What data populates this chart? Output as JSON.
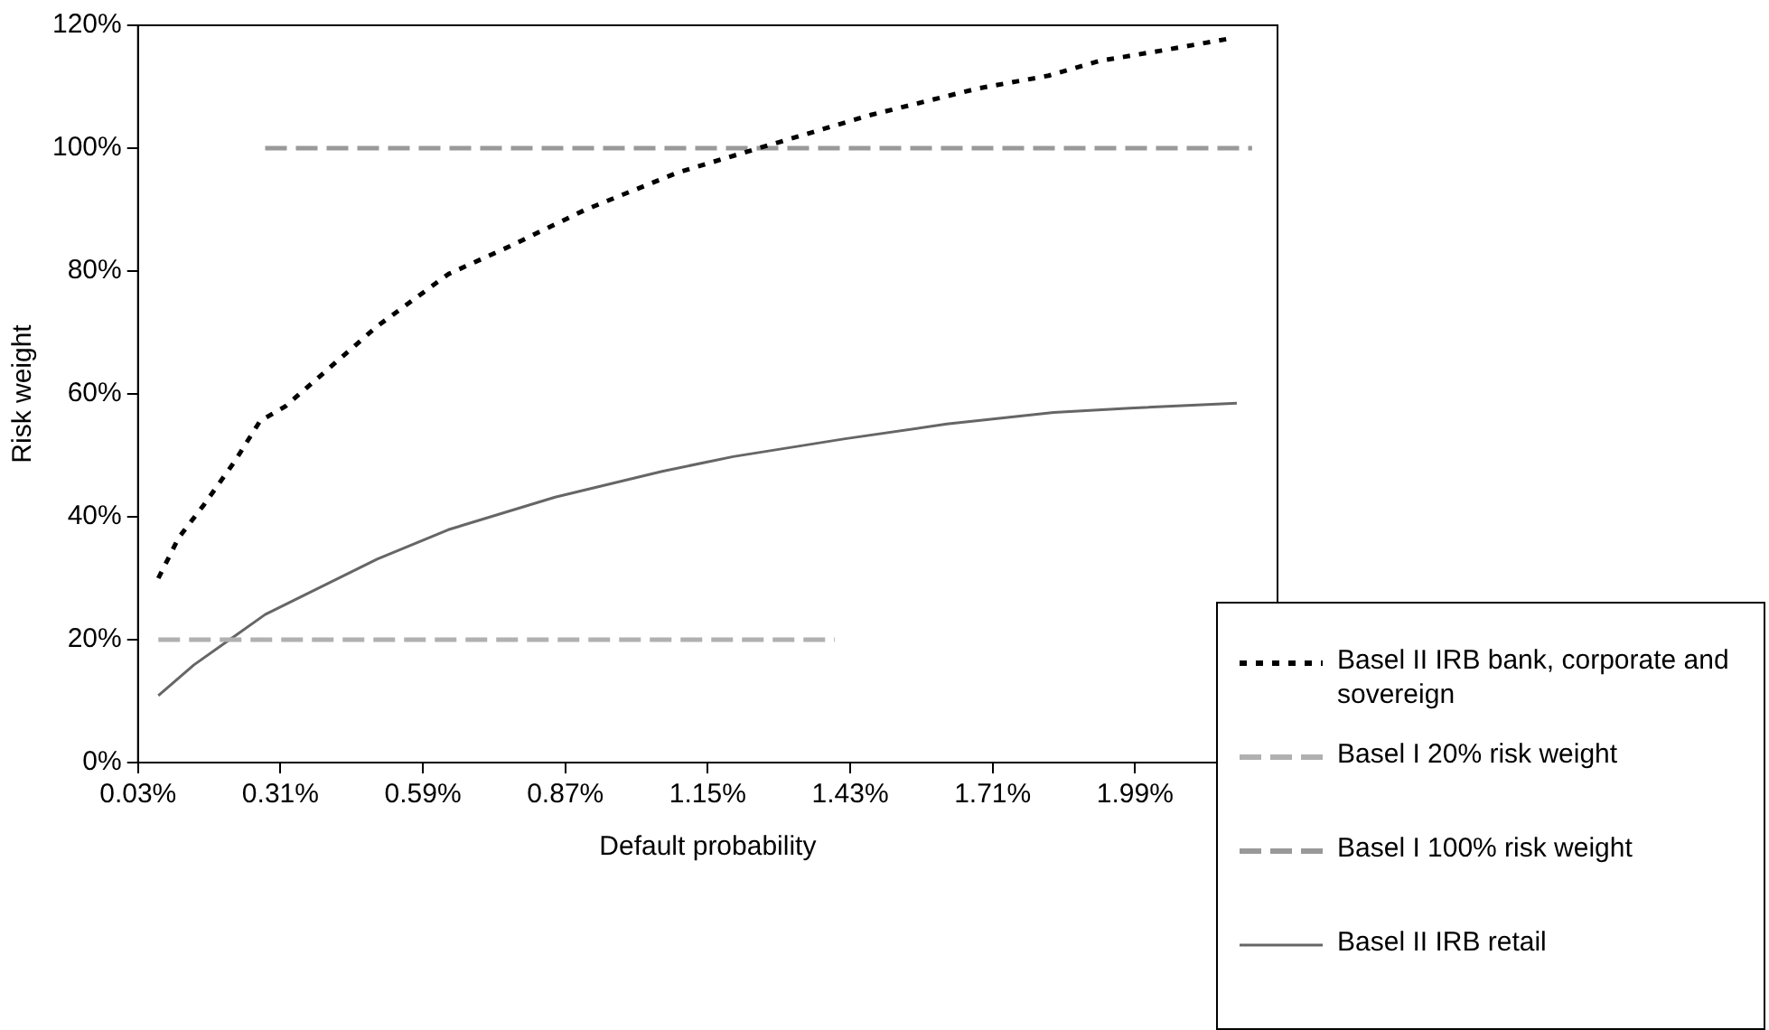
{
  "chart_data": {
    "type": "line",
    "xlabel": "Default probability",
    "ylabel": "Risk weight",
    "xlim": [
      0.03,
      2.27
    ],
    "xticks": [
      {
        "value": 0.03,
        "label": "0.03%"
      },
      {
        "value": 0.31,
        "label": "0.31%"
      },
      {
        "value": 0.59,
        "label": "0.59%"
      },
      {
        "value": 0.87,
        "label": "0.87%"
      },
      {
        "value": 1.15,
        "label": "1.15%"
      },
      {
        "value": 1.43,
        "label": "1.43%"
      },
      {
        "value": 1.71,
        "label": "1.71%"
      },
      {
        "value": 1.99,
        "label": "1.99%"
      },
      {
        "value": 2.27,
        "label": null
      }
    ],
    "ylim": [
      0,
      120
    ],
    "yticks": [
      {
        "value": 0,
        "label": "0%"
      },
      {
        "value": 20,
        "label": "20%"
      },
      {
        "value": 40,
        "label": "40%"
      },
      {
        "value": 60,
        "label": "60%"
      },
      {
        "value": 80,
        "label": "80%"
      },
      {
        "value": 100,
        "label": "100%"
      },
      {
        "value": 120,
        "label": "120%"
      }
    ],
    "grid": false,
    "legend": "bottom right",
    "marker": "none",
    "series": [
      {
        "name": "Basel II IRB bank, corporate and sovereign",
        "color": "#000000",
        "line_style": "dotted",
        "x": [
          0.07,
          0.11,
          0.16,
          0.22,
          0.27,
          0.32,
          0.5,
          0.64,
          0.76,
          0.91,
          1.09,
          1.25,
          1.47,
          1.68,
          1.82,
          1.92,
          2.05,
          2.18
        ],
        "values": [
          30,
          36.6,
          42,
          49,
          55.6,
          58,
          71,
          79.5,
          84,
          90,
          96,
          100,
          105.4,
          109.7,
          111.8,
          114.2,
          116,
          117.9
        ]
      },
      {
        "name": "Basel I 20% risk weight",
        "color": "#b0b0b0",
        "line_style": "dashed",
        "x": [
          0.07,
          1.4
        ],
        "values": [
          20,
          20
        ]
      },
      {
        "name": "Basel I 100% risk weight",
        "color": "#999999",
        "line_style": "dashed",
        "x": [
          0.28,
          2.22
        ],
        "values": [
          100,
          100
        ]
      },
      {
        "name": "Basel II IRB retail",
        "color": "#666666",
        "line_style": "solid",
        "x": [
          0.07,
          0.14,
          0.28,
          0.5,
          0.64,
          0.85,
          1.06,
          1.2,
          1.42,
          1.62,
          1.83,
          1.98,
          2.19
        ],
        "values": [
          10.9,
          15.9,
          24.1,
          33.1,
          37.9,
          43.2,
          47.4,
          49.8,
          52.7,
          55.1,
          57,
          57.7,
          58.5
        ]
      }
    ]
  }
}
